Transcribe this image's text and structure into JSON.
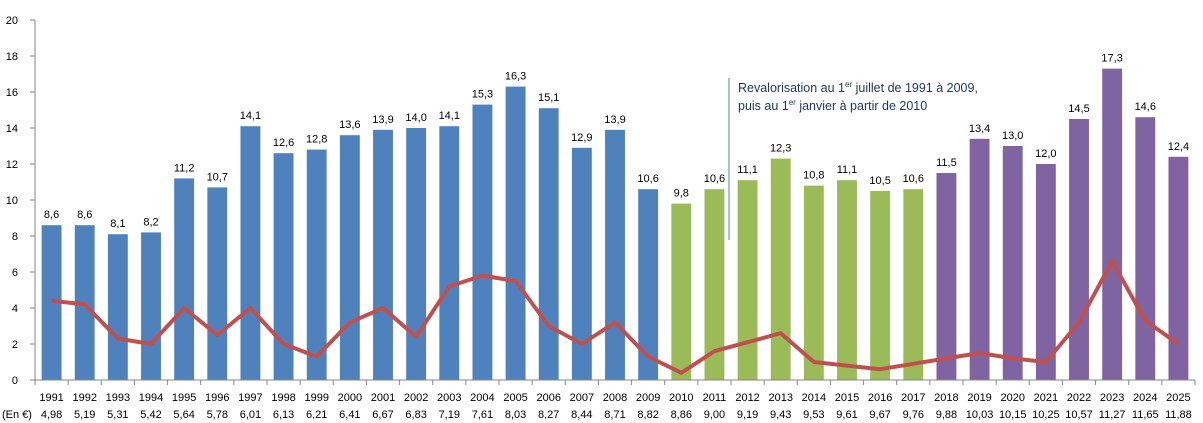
{
  "chart_data": {
    "type": "bar",
    "title": "",
    "xlabel": "",
    "ylabel": "",
    "ylim": [
      0,
      20
    ],
    "yticks": [
      "0",
      "2",
      "4",
      "6",
      "8",
      "10",
      "12",
      "14",
      "16",
      "18",
      "20"
    ],
    "grid": false,
    "categories": [
      "1991",
      "1992",
      "1993",
      "1994",
      "1995",
      "1996",
      "1997",
      "1998",
      "1999",
      "2000",
      "2001",
      "2002",
      "2003",
      "2004",
      "2005",
      "2006",
      "2007",
      "2008",
      "2009",
      "2010",
      "2011",
      "2012",
      "2013",
      "2014",
      "2015",
      "2016",
      "2017",
      "2018",
      "2019",
      "2020",
      "2021",
      "2022",
      "2023",
      "2024",
      "2025"
    ],
    "second_row_label": "(En €)",
    "second_row": [
      "4,98",
      "5,19",
      "5,31",
      "5,42",
      "5,64",
      "5,78",
      "6,01",
      "6,13",
      "6,21",
      "6,41",
      "6,67",
      "6,83",
      "7,19",
      "7,61",
      "8,03",
      "8,27",
      "8,44",
      "8,71",
      "8,82",
      "8,86",
      "9,00",
      "9,19",
      "9,43",
      "9,53",
      "9,61",
      "9,67",
      "9,76",
      "9,88",
      "10,03",
      "10,15",
      "10,25",
      "10,57",
      "11,27",
      "11,65",
      "11,88"
    ],
    "series": [
      {
        "name": "bars",
        "type": "bar",
        "values": [
          8.6,
          8.6,
          8.1,
          8.2,
          11.2,
          10.7,
          14.1,
          12.6,
          12.8,
          13.6,
          13.9,
          14.0,
          14.1,
          15.3,
          16.3,
          15.1,
          12.9,
          13.9,
          10.6,
          9.8,
          10.6,
          11.1,
          12.3,
          10.8,
          11.1,
          10.5,
          10.6,
          11.5,
          13.4,
          13.0,
          12.0,
          14.5,
          17.3,
          14.6,
          12.4
        ],
        "labels": [
          "8,6",
          "8,6",
          "8,1",
          "8,2",
          "11,2",
          "10,7",
          "14,1",
          "12,6",
          "12,8",
          "13,6",
          "13,9",
          "14,0",
          "14,1",
          "15,3",
          "16,3",
          "15,1",
          "12,9",
          "13,9",
          "10,6",
          "9,8",
          "10,6",
          "11,1",
          "12,3",
          "10,8",
          "11,1",
          "10,5",
          "10,6",
          "11,5",
          "13,4",
          "13,0",
          "12,0",
          "14,5",
          "17,3",
          "14,6",
          "12,4"
        ],
        "color_groups": [
          {
            "from": "1991",
            "to": "2009",
            "color": "#4f81bd"
          },
          {
            "from": "2010",
            "to": "2017",
            "color": "#9bbb59"
          },
          {
            "from": "2018",
            "to": "2025",
            "color": "#8064a2"
          }
        ]
      },
      {
        "name": "line",
        "type": "line",
        "color": "#c0504d",
        "values": [
          4.4,
          4.2,
          2.3,
          2.0,
          4.0,
          2.5,
          4.0,
          2.0,
          1.3,
          3.2,
          4.0,
          2.4,
          5.2,
          5.8,
          5.5,
          3.0,
          2.0,
          3.2,
          1.3,
          0.4,
          1.6,
          2.1,
          2.6,
          1.0,
          0.8,
          0.6,
          0.9,
          1.2,
          1.5,
          1.2,
          1.0,
          3.2,
          6.6,
          3.3,
          2.0
        ]
      }
    ],
    "annotation": {
      "line1_a": "Revalorisation au 1",
      "line1_sup": "er",
      "line1_b": " juillet de 1991 à 2009,",
      "line2_a": "puis au 1",
      "line2_sup": "er",
      "line2_b": " janvier à partir de 2010",
      "color": "#1f3864"
    }
  }
}
